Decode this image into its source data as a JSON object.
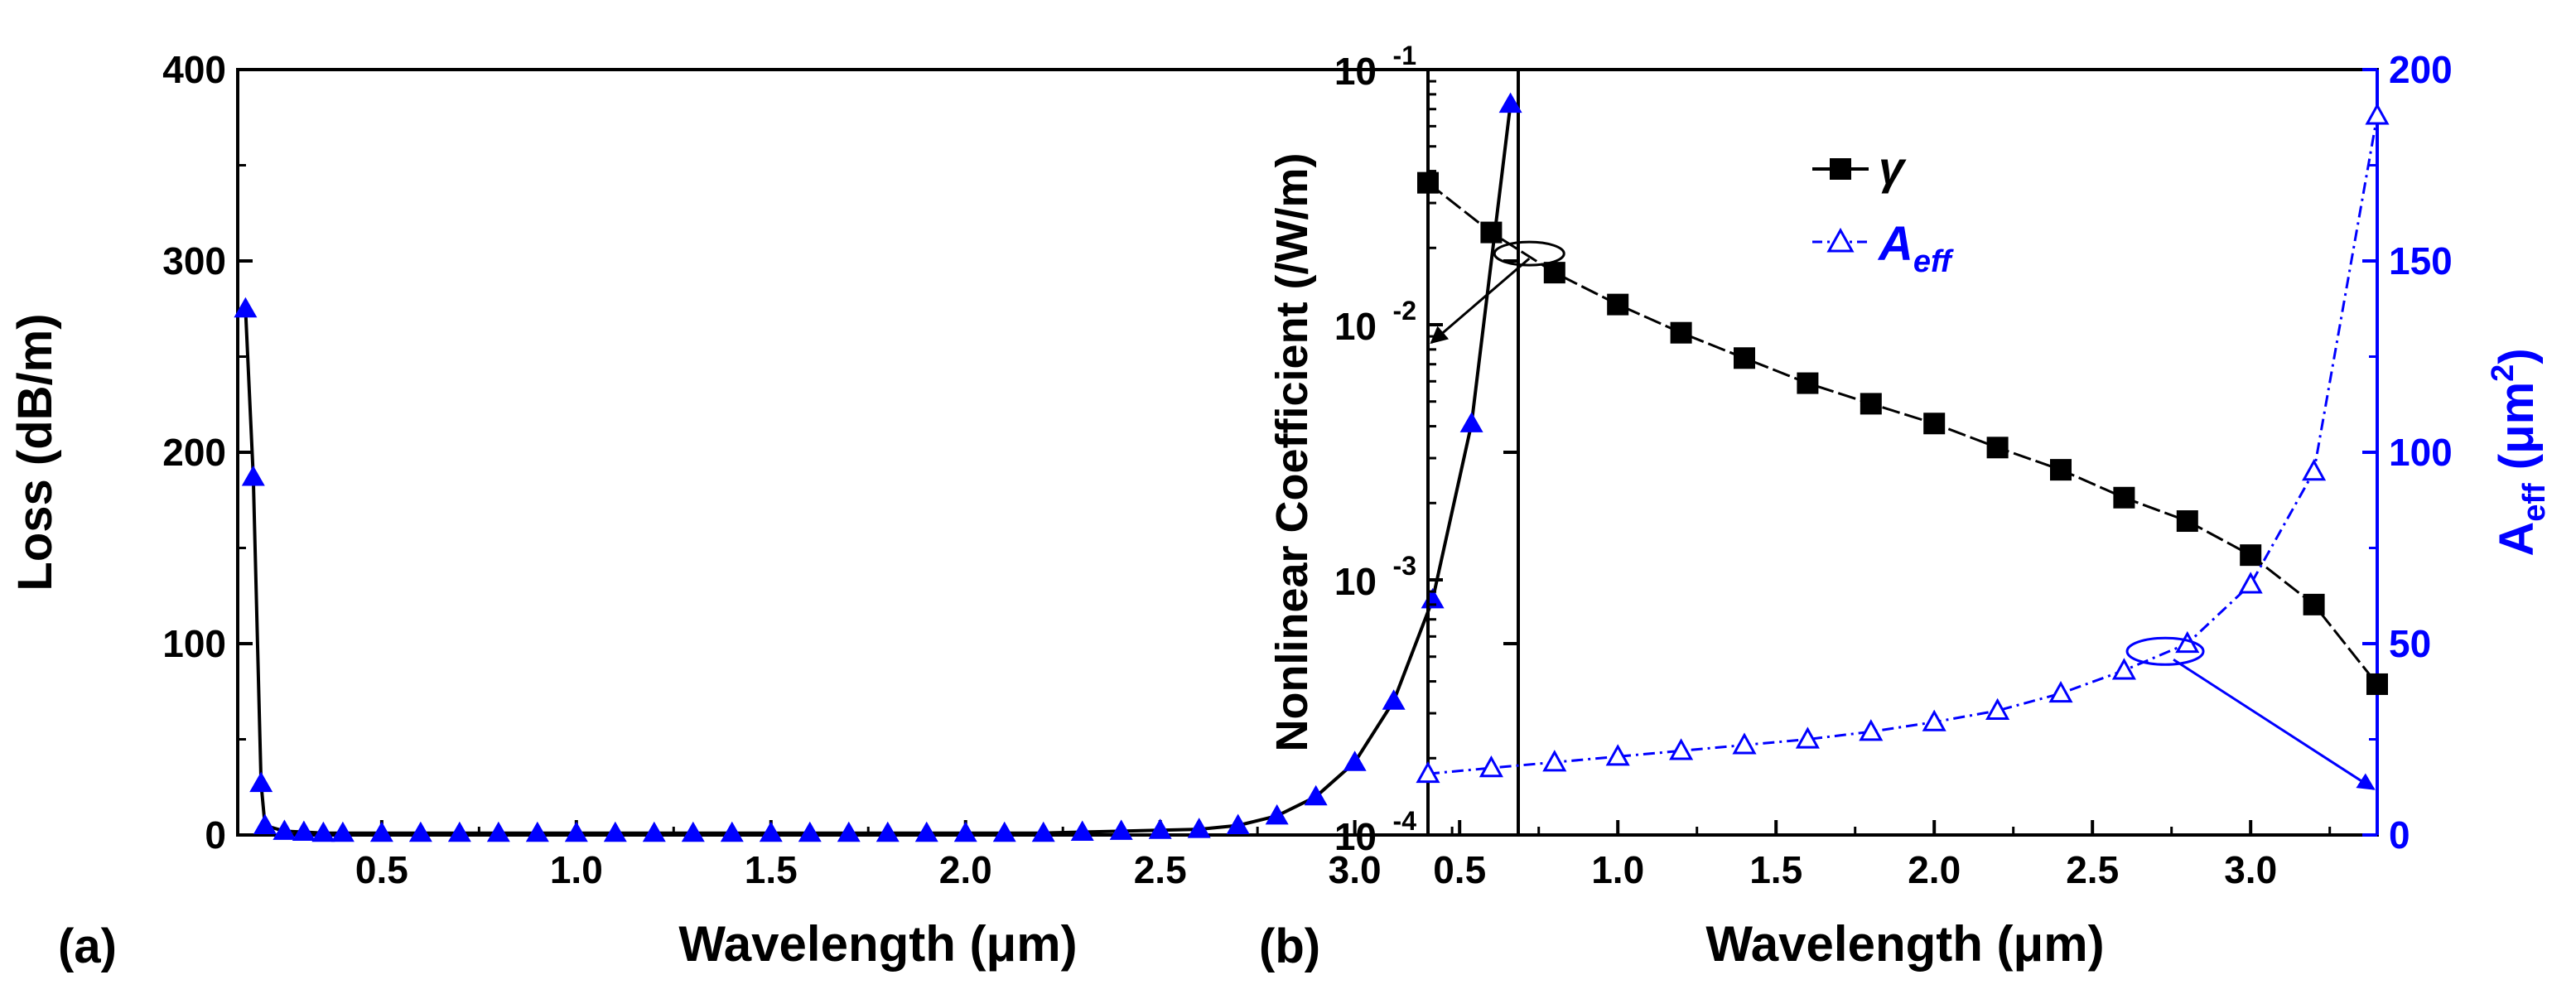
{
  "colors": {
    "black": "#000000",
    "blue": "#0000ff"
  },
  "chart_data": [
    {
      "type": "line",
      "panel_label": "(a)",
      "xlabel": "Wavelength (μm)",
      "ylabel": "Loss (dB/m)",
      "xlim": [
        0.13,
        3.42
      ],
      "ylim": [
        0,
        400
      ],
      "xticks": [
        0.5,
        1.0,
        1.5,
        2.0,
        2.5,
        3.0
      ],
      "xtick_labels": [
        "0.5",
        "1.0",
        "1.5",
        "2.0",
        "2.5",
        "3.0"
      ],
      "yticks": [
        0,
        100,
        200,
        300,
        400
      ],
      "ytick_labels": [
        "0",
        "100",
        "200",
        "300",
        "400"
      ],
      "series": [
        {
          "name": "Loss",
          "marker": "filled-triangle",
          "color": "#0000ff",
          "line_color": "#000000",
          "x": [
            0.15,
            0.17,
            0.19,
            0.2,
            0.25,
            0.3,
            0.35,
            0.4,
            0.5,
            0.6,
            0.7,
            0.8,
            0.9,
            1.0,
            1.1,
            1.2,
            1.3,
            1.4,
            1.5,
            1.6,
            1.7,
            1.8,
            1.9,
            2.0,
            2.1,
            2.2,
            2.3,
            2.4,
            2.5,
            2.6,
            2.7,
            2.8,
            2.9,
            3.0,
            3.1,
            3.2,
            3.3,
            3.4
          ],
          "y": [
            275,
            187,
            27,
            5,
            2,
            1.5,
            1,
            1,
            1,
            1,
            1,
            1,
            1,
            1,
            1,
            1,
            1,
            1,
            1,
            1,
            1,
            1,
            1,
            1,
            1,
            1,
            1.5,
            2,
            2.5,
            3,
            5,
            10,
            20,
            38,
            70,
            123,
            215,
            382
          ]
        }
      ]
    },
    {
      "type": "line",
      "panel_label": "(b)",
      "xlabel": "Wavelength (μm)",
      "ylabel": "Nonlinear Coefficient (/W/m)",
      "ylabel_right": "A_eff (μm^2)",
      "ylabel_right_parts": {
        "main": "A",
        "sub": "eff",
        "unit": " (μm",
        "sup": "2",
        "close": ")"
      },
      "xlim": [
        0.4,
        3.4
      ],
      "ylim_log": [
        -4,
        -1
      ],
      "ylim_right": [
        0,
        200
      ],
      "xticks": [
        0.5,
        1.0,
        1.5,
        2.0,
        2.5,
        3.0
      ],
      "xtick_labels": [
        "0.5",
        "1.0",
        "1.5",
        "2.0",
        "2.5",
        "3.0"
      ],
      "yticks_left": [
        {
          "base": "10",
          "exp": "-4"
        },
        {
          "base": "10",
          "exp": "-3"
        },
        {
          "base": "10",
          "exp": "-2"
        },
        {
          "base": "10",
          "exp": "-1"
        }
      ],
      "yticks_right": [
        0,
        50,
        100,
        150,
        200
      ],
      "ytick_labels_right": [
        "0",
        "50",
        "100",
        "150",
        "200"
      ],
      "legend": [
        {
          "label": "γ",
          "marker": "filled-square",
          "color": "#000000"
        },
        {
          "label": "A",
          "sub": "eff",
          "marker": "open-triangle",
          "color": "#0000ff"
        }
      ],
      "series": [
        {
          "name": "γ",
          "axis": "left",
          "marker": "filled-square",
          "line_style": "dashed",
          "color": "#000000",
          "x": [
            0.4,
            0.6,
            0.8,
            1.0,
            1.2,
            1.4,
            1.6,
            1.8,
            2.0,
            2.2,
            2.4,
            2.6,
            2.8,
            3.0,
            3.2,
            3.4
          ],
          "y": [
            0.036,
            0.023,
            0.016,
            0.012,
            0.0093,
            0.0074,
            0.0059,
            0.0049,
            0.0041,
            0.0033,
            0.0027,
            0.0021,
            0.0017,
            0.00125,
            0.0008,
            0.00039
          ]
        },
        {
          "name": "A_eff",
          "axis": "right",
          "marker": "open-triangle",
          "line_style": "dash-dot",
          "color": "#0000ff",
          "x": [
            0.4,
            0.6,
            0.8,
            1.0,
            1.2,
            1.4,
            1.6,
            1.8,
            2.0,
            2.2,
            2.4,
            2.6,
            2.8,
            3.0,
            3.2,
            3.4
          ],
          "y": [
            16,
            17.5,
            19,
            20.5,
            22,
            23.5,
            25,
            27,
            29.5,
            32.5,
            37,
            43,
            50,
            65.5,
            95,
            188
          ]
        }
      ],
      "annotations": [
        {
          "type": "ellipse-arrow",
          "target_axis": "left",
          "at": [
            0.72,
            0.019
          ],
          "to": [
            0.4,
            0.0085
          ],
          "color": "#000000"
        },
        {
          "type": "ellipse-arrow",
          "target_axis": "right",
          "at": [
            2.73,
            48
          ],
          "to": [
            3.4,
            12
          ],
          "color": "#0000ff"
        }
      ]
    }
  ]
}
